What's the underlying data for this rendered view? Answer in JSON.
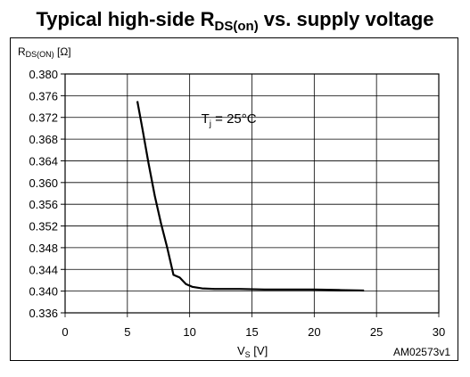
{
  "title": {
    "text": "Typical high-side R",
    "subscript": "DS(on)",
    "suffix": " vs. supply voltage"
  },
  "chart_data": {
    "type": "line",
    "title": "Typical high-side RDS(on) vs. supply voltage",
    "ylabel": {
      "main": "R",
      "sub": "DS(ON)",
      "unit": " [Ω]"
    },
    "xlabel": {
      "main": "V",
      "sub": "S",
      "unit": " [V]"
    },
    "xlim": [
      0,
      30
    ],
    "ylim": [
      0.336,
      0.38
    ],
    "x_ticks": [
      0,
      5,
      10,
      15,
      20,
      25,
      30
    ],
    "x_tick_labels": [
      "0",
      "5",
      "10",
      "15",
      "20",
      "25",
      "30"
    ],
    "y_ticks": [
      0.336,
      0.34,
      0.344,
      0.348,
      0.352,
      0.356,
      0.36,
      0.364,
      0.368,
      0.372,
      0.376,
      0.38
    ],
    "y_tick_labels": [
      "0.336",
      "0.340",
      "0.344",
      "0.348",
      "0.352",
      "0.356",
      "0.360",
      "0.364",
      "0.368",
      "0.372",
      "0.376",
      "0.380"
    ],
    "grid": true,
    "series": [
      {
        "x": [
          5.8,
          6.2,
          6.7,
          7.2,
          7.7,
          8.2,
          8.7,
          9.2,
          9.7,
          10.2,
          11.0,
          12.0,
          14.0,
          16.0,
          18.0,
          20.0,
          22.0,
          24.0
        ],
        "y": [
          0.375,
          0.37,
          0.3635,
          0.3575,
          0.3525,
          0.348,
          0.343,
          0.3425,
          0.3413,
          0.3408,
          0.3405,
          0.3404,
          0.3404,
          0.3403,
          0.3403,
          0.3403,
          0.3402,
          0.3401
        ]
      }
    ],
    "annotations": [
      {
        "main": "T",
        "sub": "j",
        "text": " = 25°C",
        "x": 13,
        "y": 0.3715
      }
    ],
    "figure_id": "AM02573v1"
  }
}
